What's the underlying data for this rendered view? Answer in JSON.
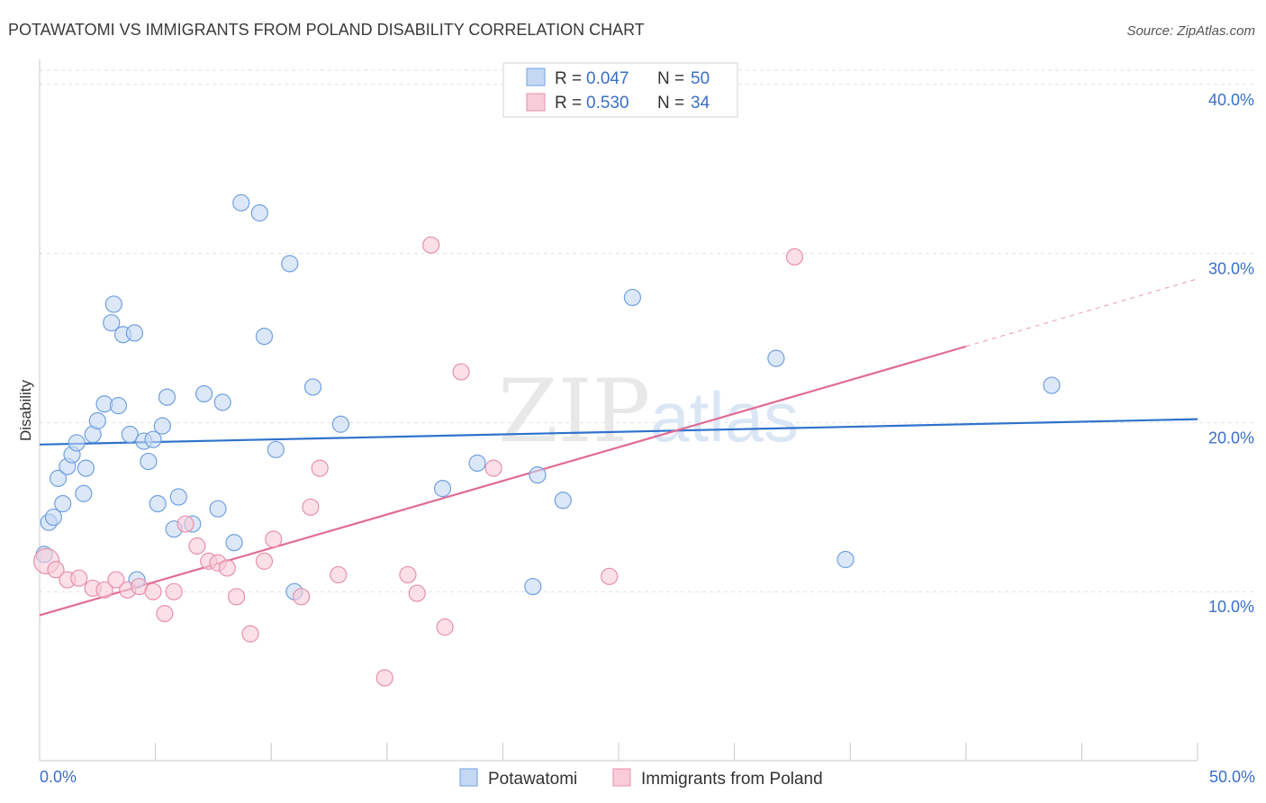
{
  "chart_data": {
    "type": "scatter",
    "title": "POTAWATOMI VS IMMIGRANTS FROM POLAND DISABILITY CORRELATION CHART",
    "source": "Source: ZipAtlas.com",
    "ylabel": "Disability",
    "xlim": [
      0,
      50
    ],
    "ylim": [
      0,
      41
    ],
    "x_tick_labels": {
      "min": "0.0%",
      "max": "50.0%"
    },
    "y_ticks": [
      {
        "value": 10,
        "label": "10.0%"
      },
      {
        "value": 20,
        "label": "20.0%"
      },
      {
        "value": 30,
        "label": "30.0%"
      },
      {
        "value": 40,
        "label": "40.0%"
      }
    ],
    "grid": true,
    "legend_position": "top-center",
    "watermark": "ZIPatlas",
    "series": [
      {
        "name": "Potawatomi",
        "color": "#6fa0e0",
        "fill": "#c4d8f4",
        "line_color": "#2f72cc",
        "stats": {
          "r_label": "R =",
          "r": "0.047",
          "n_label": "N =",
          "n": "50"
        },
        "trend": {
          "x": [
            0,
            50
          ],
          "y": [
            18.7,
            20.2
          ]
        },
        "points": [
          [
            0.2,
            12.2
          ],
          [
            0.4,
            14.1
          ],
          [
            0.6,
            14.4
          ],
          [
            0.8,
            16.7
          ],
          [
            1.0,
            15.2
          ],
          [
            1.2,
            17.4
          ],
          [
            1.4,
            18.1
          ],
          [
            1.6,
            18.8
          ],
          [
            2.0,
            17.3
          ],
          [
            1.9,
            15.8
          ],
          [
            2.3,
            19.3
          ],
          [
            2.5,
            20.1
          ],
          [
            2.8,
            21.1
          ],
          [
            3.1,
            25.9
          ],
          [
            3.2,
            27.0
          ],
          [
            3.4,
            21.0
          ],
          [
            3.6,
            25.2
          ],
          [
            3.9,
            19.3
          ],
          [
            4.1,
            25.3
          ],
          [
            4.2,
            10.7
          ],
          [
            4.5,
            18.9
          ],
          [
            4.7,
            17.7
          ],
          [
            4.9,
            19.0
          ],
          [
            5.1,
            15.2
          ],
          [
            5.3,
            19.8
          ],
          [
            5.5,
            21.5
          ],
          [
            5.8,
            13.7
          ],
          [
            6.0,
            15.6
          ],
          [
            6.6,
            14.0
          ],
          [
            7.1,
            21.7
          ],
          [
            7.7,
            14.9
          ],
          [
            7.9,
            21.2
          ],
          [
            8.4,
            12.9
          ],
          [
            8.7,
            33.0
          ],
          [
            9.5,
            32.4
          ],
          [
            9.7,
            25.1
          ],
          [
            10.2,
            18.4
          ],
          [
            10.8,
            29.4
          ],
          [
            11.0,
            10.0
          ],
          [
            11.8,
            22.1
          ],
          [
            13.0,
            19.9
          ],
          [
            17.4,
            16.1
          ],
          [
            18.9,
            17.6
          ],
          [
            21.3,
            10.3
          ],
          [
            21.5,
            16.9
          ],
          [
            22.6,
            15.4
          ],
          [
            25.6,
            27.4
          ],
          [
            31.8,
            23.8
          ],
          [
            34.8,
            11.9
          ],
          [
            43.7,
            22.2
          ]
        ]
      },
      {
        "name": "Immigrants from Poland",
        "color": "#e890aa",
        "fill": "#f8ccd8",
        "line_color": "#e06c94",
        "stats": {
          "r_label": "R =",
          "r": "0.530",
          "n_label": "N =",
          "n": "34"
        },
        "trend": {
          "x": [
            0,
            40
          ],
          "y": [
            8.6,
            24.5
          ]
        },
        "trend_dashed": {
          "x": [
            40,
            50
          ],
          "y": [
            24.5,
            28.5
          ]
        },
        "points": [
          [
            0.3,
            11.8
          ],
          [
            0.7,
            11.3
          ],
          [
            1.2,
            10.7
          ],
          [
            1.7,
            10.8
          ],
          [
            2.3,
            10.2
          ],
          [
            2.8,
            10.1
          ],
          [
            3.3,
            10.7
          ],
          [
            3.8,
            10.1
          ],
          [
            4.3,
            10.3
          ],
          [
            4.9,
            10.0
          ],
          [
            5.4,
            8.7
          ],
          [
            5.8,
            10.0
          ],
          [
            6.3,
            14.0
          ],
          [
            6.8,
            12.7
          ],
          [
            7.3,
            11.8
          ],
          [
            7.7,
            11.7
          ],
          [
            8.1,
            11.4
          ],
          [
            8.5,
            9.7
          ],
          [
            9.1,
            7.5
          ],
          [
            9.7,
            11.8
          ],
          [
            10.1,
            13.1
          ],
          [
            11.3,
            9.7
          ],
          [
            11.7,
            15.0
          ],
          [
            12.1,
            17.3
          ],
          [
            12.9,
            11.0
          ],
          [
            14.9,
            4.9
          ],
          [
            15.9,
            11.0
          ],
          [
            16.3,
            9.9
          ],
          [
            16.9,
            30.5
          ],
          [
            17.5,
            7.9
          ],
          [
            18.2,
            23.0
          ],
          [
            19.6,
            17.3
          ],
          [
            24.6,
            10.9
          ],
          [
            32.6,
            29.8
          ]
        ]
      }
    ]
  }
}
